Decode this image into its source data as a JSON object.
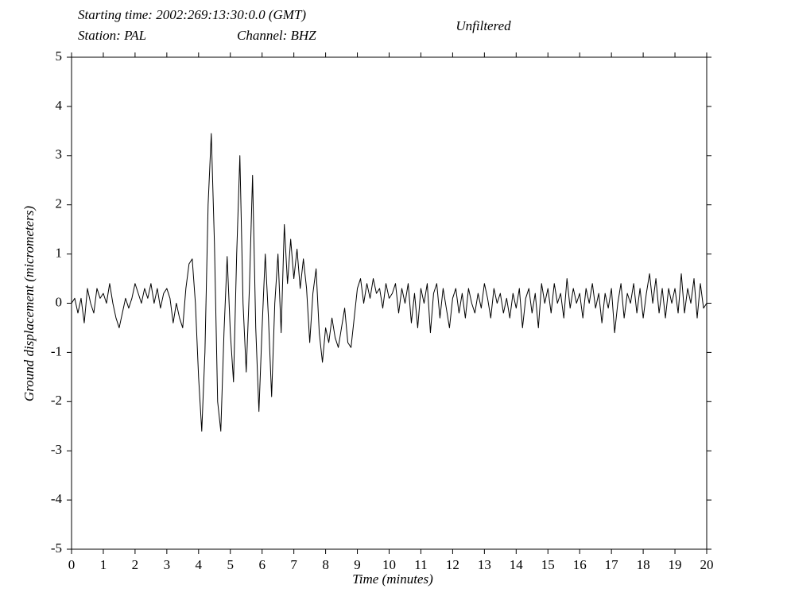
{
  "chart_data": {
    "type": "line",
    "title": "Unfiltered",
    "header": [
      "Starting time: 2002:269:13:30:0.0 (GMT)",
      "Station: PAL",
      "Channel: BHZ"
    ],
    "xlabel": "Time (minutes)",
    "ylabel": "Ground displacement (micrometers)",
    "xlim": [
      0,
      20
    ],
    "ylim": [
      -5,
      5
    ],
    "xticks": [
      0,
      1,
      2,
      3,
      4,
      5,
      6,
      7,
      8,
      9,
      10,
      11,
      12,
      13,
      14,
      15,
      16,
      17,
      18,
      19,
      20
    ],
    "yticks": [
      -5,
      -4,
      -3,
      -2,
      -1,
      0,
      1,
      2,
      3,
      4,
      5
    ],
    "grid": false,
    "x": [
      0,
      0.1,
      0.2,
      0.3,
      0.4,
      0.5,
      0.6,
      0.7,
      0.8,
      0.9,
      1,
      1.1,
      1.2,
      1.3,
      1.4,
      1.5,
      1.6,
      1.7,
      1.8,
      1.9,
      2,
      2.1,
      2.2,
      2.3,
      2.4,
      2.5,
      2.6,
      2.7,
      2.8,
      2.9,
      3,
      3.1,
      3.2,
      3.3,
      3.4,
      3.5,
      3.6,
      3.7,
      3.8,
      3.9,
      4,
      4.1,
      4.2,
      4.3,
      4.4,
      4.5,
      4.6,
      4.7,
      4.8,
      4.9,
      5,
      5.1,
      5.2,
      5.3,
      5.4,
      5.5,
      5.6,
      5.7,
      5.8,
      5.9,
      6,
      6.1,
      6.2,
      6.3,
      6.4,
      6.5,
      6.6,
      6.7,
      6.8,
      6.9,
      7,
      7.1,
      7.2,
      7.3,
      7.4,
      7.5,
      7.6,
      7.7,
      7.8,
      7.9,
      8,
      8.1,
      8.2,
      8.3,
      8.4,
      8.5,
      8.6,
      8.7,
      8.8,
      8.9,
      9,
      9.1,
      9.2,
      9.3,
      9.4,
      9.5,
      9.6,
      9.7,
      9.8,
      9.9,
      10,
      10.1,
      10.2,
      10.3,
      10.4,
      10.5,
      10.6,
      10.7,
      10.8,
      10.9,
      11,
      11.1,
      11.2,
      11.3,
      11.4,
      11.5,
      11.6,
      11.7,
      11.8,
      11.9,
      12,
      12.1,
      12.2,
      12.3,
      12.4,
      12.5,
      12.6,
      12.7,
      12.8,
      12.9,
      13,
      13.1,
      13.2,
      13.3,
      13.4,
      13.5,
      13.6,
      13.7,
      13.8,
      13.9,
      14,
      14.1,
      14.2,
      14.3,
      14.4,
      14.5,
      14.6,
      14.7,
      14.8,
      14.9,
      15,
      15.1,
      15.2,
      15.3,
      15.4,
      15.5,
      15.6,
      15.7,
      15.8,
      15.9,
      16,
      16.1,
      16.2,
      16.3,
      16.4,
      16.5,
      16.6,
      16.7,
      16.8,
      16.9,
      17,
      17.1,
      17.2,
      17.3,
      17.4,
      17.5,
      17.6,
      17.7,
      17.8,
      17.9,
      18,
      18.1,
      18.2,
      18.3,
      18.4,
      18.5,
      18.6,
      18.7,
      18.8,
      18.9,
      19,
      19.1,
      19.2,
      19.3,
      19.4,
      19.5,
      19.6,
      19.7,
      19.8,
      19.9,
      20
    ],
    "series": [
      {
        "color": "#000000",
        "values": [
          0.0,
          0.1,
          -0.2,
          0.1,
          -0.4,
          0.3,
          0.0,
          -0.2,
          0.3,
          0.1,
          0.2,
          0.0,
          0.4,
          0.0,
          -0.3,
          -0.5,
          -0.2,
          0.1,
          -0.1,
          0.1,
          0.4,
          0.2,
          0.0,
          0.3,
          0.1,
          0.4,
          0.0,
          0.3,
          -0.1,
          0.2,
          0.3,
          0.1,
          -0.4,
          0.0,
          -0.3,
          -0.5,
          0.3,
          0.8,
          0.9,
          0.0,
          -1.5,
          -2.6,
          -1.0,
          2.0,
          3.45,
          1.2,
          -2.0,
          -2.6,
          -0.6,
          0.95,
          -0.6,
          -1.6,
          1.0,
          3.0,
          0.0,
          -1.4,
          0.3,
          2.6,
          -0.5,
          -2.2,
          -0.5,
          1.0,
          -0.3,
          -1.9,
          0.0,
          1.0,
          -0.6,
          1.6,
          0.4,
          1.3,
          0.5,
          1.1,
          0.3,
          0.9,
          0.3,
          -0.8,
          0.2,
          0.7,
          -0.6,
          -1.2,
          -0.5,
          -0.8,
          -0.3,
          -0.7,
          -0.9,
          -0.5,
          -0.1,
          -0.8,
          -0.9,
          -0.3,
          0.3,
          0.5,
          0.0,
          0.4,
          0.1,
          0.5,
          0.2,
          0.3,
          -0.1,
          0.4,
          0.1,
          0.2,
          0.4,
          -0.2,
          0.3,
          0.0,
          0.4,
          -0.4,
          0.2,
          -0.5,
          0.3,
          0.0,
          0.4,
          -0.6,
          0.2,
          0.4,
          -0.3,
          0.3,
          -0.1,
          -0.5,
          0.1,
          0.3,
          -0.2,
          0.2,
          -0.3,
          0.3,
          0.0,
          -0.2,
          0.2,
          -0.1,
          0.4,
          0.1,
          -0.3,
          0.3,
          0.0,
          0.2,
          -0.2,
          0.1,
          -0.3,
          0.2,
          -0.1,
          0.3,
          -0.5,
          0.1,
          0.3,
          -0.2,
          0.2,
          -0.5,
          0.4,
          0.0,
          0.3,
          -0.2,
          0.4,
          0.0,
          0.2,
          -0.3,
          0.5,
          -0.1,
          0.3,
          0.0,
          0.2,
          -0.3,
          0.3,
          0.0,
          0.4,
          -0.1,
          0.2,
          -0.4,
          0.2,
          -0.1,
          0.3,
          -0.6,
          0.0,
          0.4,
          -0.3,
          0.2,
          0.0,
          0.4,
          -0.2,
          0.3,
          -0.3,
          0.2,
          0.6,
          0.0,
          0.5,
          -0.2,
          0.3,
          -0.3,
          0.3,
          0.0,
          0.3,
          -0.2,
          0.6,
          -0.2,
          0.3,
          0.0,
          0.5,
          -0.3,
          0.4,
          -0.1,
          0.0
        ]
      }
    ]
  }
}
